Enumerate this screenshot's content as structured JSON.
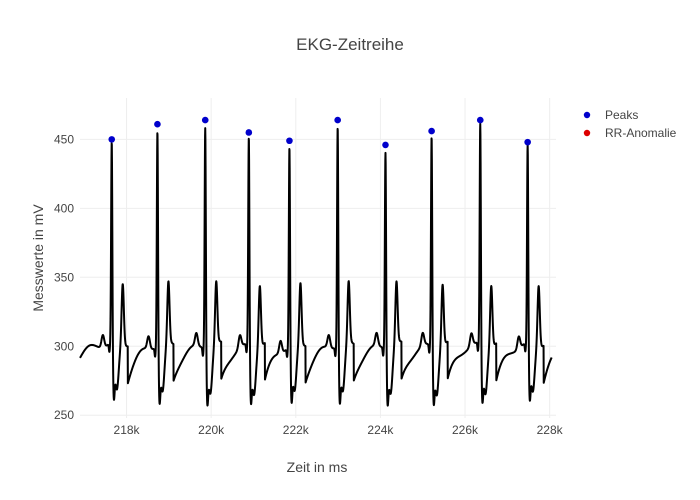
{
  "chart_data": {
    "type": "line",
    "title": "EKG-Zeitreihe",
    "xlabel": "Zeit in ms",
    "ylabel": "Messwerte in mV",
    "xlim": [
      216900,
      228150
    ],
    "ylim": [
      248,
      480
    ],
    "x_ticks": [
      218000,
      220000,
      222000,
      224000,
      226000,
      228000
    ],
    "x_tick_labels": [
      "218k",
      "220k",
      "222k",
      "224k",
      "226k",
      "228k"
    ],
    "y_ticks": [
      250,
      300,
      350,
      400,
      450
    ],
    "y_tick_labels": [
      "250",
      "300",
      "350",
      "400",
      "450"
    ],
    "grid": true,
    "legend_position": "top-right",
    "colors": {
      "signal": "#000000",
      "peaks": "#0000cc",
      "anomaly": "#dd0000",
      "grid": "#eeeeee"
    },
    "series": [
      {
        "name": "Peaks",
        "type": "scatter",
        "x": [
          217650,
          218730,
          219860,
          220890,
          221850,
          222990,
          224120,
          225210,
          226360,
          227480
        ],
        "values": [
          450,
          461,
          464,
          455,
          449,
          464,
          446,
          456,
          464,
          448
        ]
      },
      {
        "name": "RR-Anomalie",
        "type": "scatter",
        "x": [],
        "values": []
      }
    ]
  }
}
